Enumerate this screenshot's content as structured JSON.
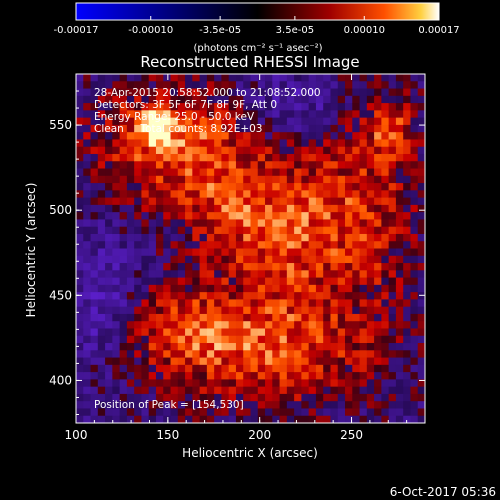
{
  "chart_data": {
    "type": "heatmap",
    "title": "Reconstructed RHESSI Image",
    "xlabel": "Heliocentric X (arcsec)",
    "ylabel": "Heliocentric Y (arcsec)",
    "xlim": [
      100,
      290
    ],
    "ylim": [
      375,
      580
    ],
    "x_ticks": [
      100,
      150,
      200,
      250
    ],
    "y_ticks": [
      400,
      450,
      500,
      550
    ],
    "colorbar": {
      "min": -0.00017,
      "max": 0.00017,
      "units": "(photons cm⁻² s⁻¹ asec⁻²)",
      "ticks_top": [
        "-3.5e-05",
        "3.5e-05"
      ],
      "ticks_bottom": [
        "-0.00017",
        "-0.00010",
        "0.00010",
        "0.00017"
      ],
      "tick_values_top": [
        -3.5e-05,
        3.5e-05
      ],
      "tick_values_bottom": [
        -0.00017,
        -0.0001,
        0.0001,
        0.00017
      ]
    },
    "annotations": [
      "28-Apr-2015 20:58:52.000 to 21:08:52.000",
      "Detectors: 3F 5F 6F 7F 8F 9F, Att 0",
      "Energy Range: 25.0 - 50.0 keV",
      "Clean     Total counts: 8.92E+03"
    ],
    "peak_label": "Position of Peak = [154,530]",
    "peak": [
      154,
      530
    ],
    "footer": "6-Oct-2017 05:36"
  }
}
